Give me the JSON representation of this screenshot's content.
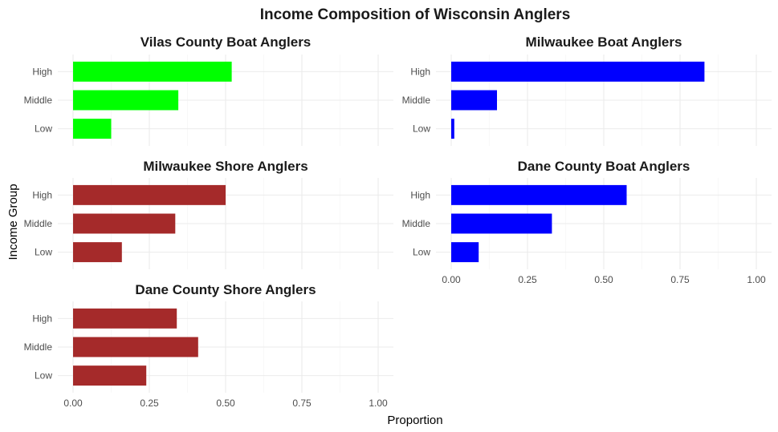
{
  "chart_data": {
    "type": "bar",
    "orientation": "horizontal",
    "title": "Income Composition of Wisconsin Anglers",
    "xlabel": "Proportion",
    "ylabel": "Income Group",
    "xlim": [
      0,
      1
    ],
    "xticks": [
      "0.00",
      "0.25",
      "0.50",
      "0.75",
      "1.00"
    ],
    "tick_values": [
      0,
      0.25,
      0.5,
      0.75,
      1
    ],
    "categories": [
      "High",
      "Middle",
      "Low"
    ],
    "grid": true,
    "panels": [
      {
        "title": "Vilas County Boat Anglers",
        "color": "#00ff00",
        "values": [
          0.52,
          0.345,
          0.125
        ]
      },
      {
        "title": "Milwaukee Boat Anglers",
        "color": "#0000ff",
        "values": [
          0.83,
          0.15,
          0.01
        ]
      },
      {
        "title": "Milwaukee Shore Anglers",
        "color": "#a52a2a",
        "values": [
          0.5,
          0.335,
          0.16
        ]
      },
      {
        "title": "Dane County Boat Anglers",
        "color": "#0000ff",
        "values": [
          0.575,
          0.33,
          0.09
        ]
      },
      {
        "title": "Dane County Shore Anglers",
        "color": "#a52a2a",
        "values": [
          0.34,
          0.41,
          0.24
        ]
      }
    ]
  }
}
